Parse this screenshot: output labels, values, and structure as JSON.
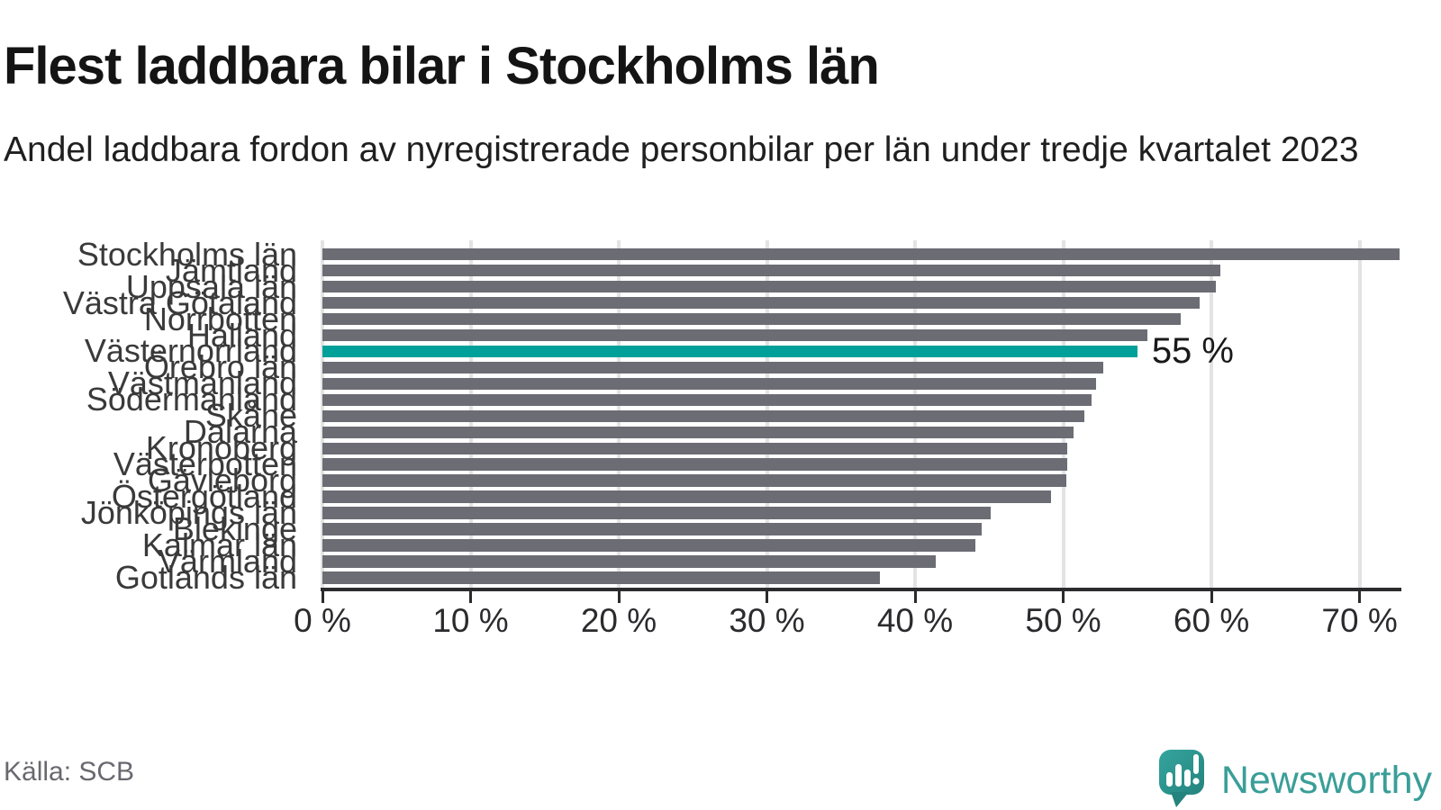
{
  "header": {
    "title": "Flest laddbara bilar i Stockholms län",
    "subtitle": "Andel laddbara fordon av nyregistrerade personbilar per län under tredje kvartalet 2023"
  },
  "chart_data": {
    "type": "bar",
    "orientation": "horizontal",
    "title": "Flest laddbara bilar i Stockholms län",
    "subtitle": "Andel laddbara fordon av nyregistrerade personbilar per län under tredje kvartalet 2023",
    "unit": "%",
    "categories": [
      "Stockholms län",
      "Jämtland",
      "Uppsala län",
      "Västra Götaland",
      "Norrbotten",
      "Halland",
      "Västernorrland",
      "Örebro län",
      "Västmanland",
      "Södermanland",
      "Skåne",
      "Dalarna",
      "Kronoberg",
      "Västerbotten",
      "Gävleborg",
      "Östergötland",
      "Jönköpings län",
      "Blekinge",
      "Kalmar län",
      "Värmland",
      "Gotlands län"
    ],
    "values": [
      72.7,
      60.6,
      60.3,
      59.2,
      57.9,
      55.7,
      55,
      52.7,
      52.2,
      51.9,
      51.4,
      50.7,
      50.3,
      50.3,
      50.2,
      49.2,
      45.1,
      44.5,
      44.1,
      41.4,
      37.6
    ],
    "highlight": {
      "index": 6,
      "category": "Västernorrland",
      "value": 55,
      "label": "55 %"
    },
    "xlim": [
      0,
      72.7
    ],
    "x_tick_values": [
      0,
      10,
      20,
      30,
      40,
      50,
      60,
      70
    ],
    "x_tick_labels": [
      "0 %",
      "10 %",
      "20 %",
      "30 %",
      "40 %",
      "50 %",
      "60 %",
      "70 %"
    ],
    "grid": true,
    "legend_position": "none",
    "xlabel": "",
    "ylabel": "",
    "colors": {
      "bar": "#6c6c74",
      "highlight": "#00a09a",
      "gridline": "#e3e3e5",
      "axis": "#2b2b2e",
      "tick_label": "#2b2b2e",
      "category_label": "#3a3a3a",
      "value_label": "#191919"
    }
  },
  "footer": {
    "source": "Källa: SCB",
    "brand": "Newsworthy",
    "brand_color": "#3a9e98",
    "logo_color_top": "#35a59e",
    "logo_color_bottom": "#24837d"
  }
}
